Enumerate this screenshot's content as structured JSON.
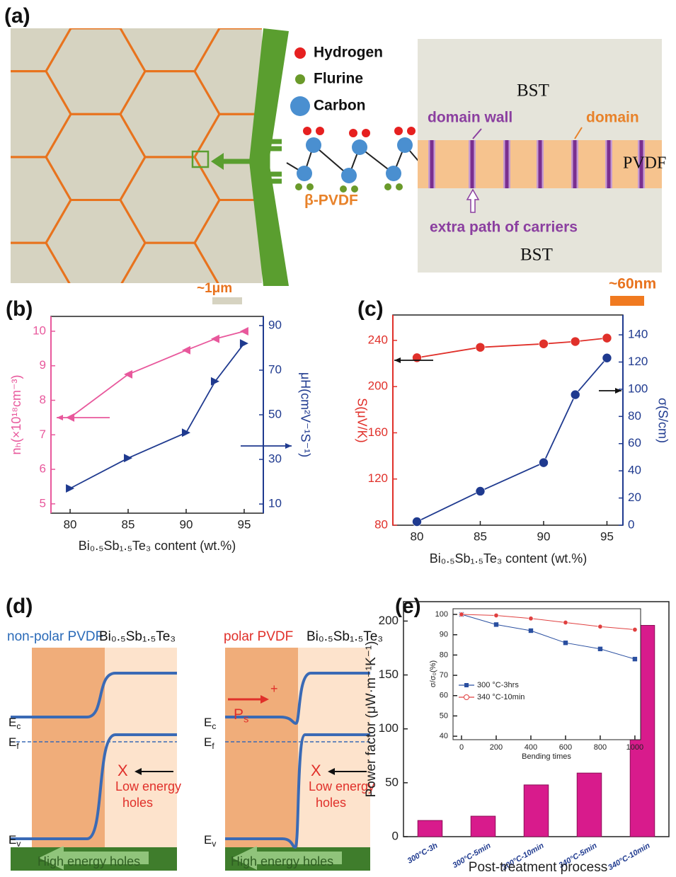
{
  "panel_labels": [
    "(a)",
    "(b)",
    "(c)",
    "(d)",
    "(e)"
  ],
  "panel_a": {
    "legend": [
      "Hydrogen",
      "Flurine",
      "Carbon"
    ],
    "molecule": "β-PVDF",
    "bst_top": "BST",
    "bst_bottom": "BST",
    "domain_wall": "domain wall",
    "domain": "domain",
    "pvdf": "PVDF",
    "extra_path": "extra path of carriers",
    "scale_left": "~1μm",
    "scale_right": "~60nm"
  },
  "panel_d": {
    "left": {
      "title": "non-polar PVDF",
      "material": "Bi₀.₅Sb₁.₅Te₃"
    },
    "right": {
      "title": "polar PVDF",
      "material": "Bi₀.₅Sb₁.₅Te₃",
      "polarization": {
        "symbol": "P",
        "subscript": "s"
      },
      "charge": "+"
    },
    "levels": [
      {
        "symbol": "E",
        "subscript": "c"
      },
      {
        "symbol": "E",
        "subscript": "f"
      },
      {
        "symbol": "E",
        "subscript": "v"
      }
    ],
    "blocked": "X",
    "low_energy_holes": [
      "Low energy",
      "holes"
    ],
    "high_energy_holes": "High energy holes"
  },
  "chart_data": [
    {
      "type": "line",
      "xlabel": "Bi₀.₅Sb₁.₅Te₃  content (wt.%)",
      "ylabel": "nₕ(×10¹⁸cm⁻³)",
      "y2label": "μH(cm²V⁻¹S⁻¹)",
      "x": [
        80,
        85,
        90,
        92.5,
        95
      ],
      "xlim": [
        78.35,
        96.65
      ],
      "xticks": [
        80,
        85,
        90,
        95
      ],
      "ylim": [
        4.73,
        10.43
      ],
      "yticks": [
        5,
        6,
        7,
        8,
        9,
        10
      ],
      "y2lim": [
        5.9,
        94.1
      ],
      "y2ticks": [
        10,
        30,
        50,
        70,
        90
      ],
      "series": [
        {
          "color": "#e8589c",
          "marker": "triangle-left",
          "values": [
            7.5,
            8.75,
            9.45,
            9.78,
            10.0
          ]
        },
        {
          "color": "#1f3a8f",
          "marker": "triangle-right",
          "axis": "y2",
          "values": [
            17,
            30.6,
            42,
            65,
            82
          ]
        }
      ]
    },
    {
      "type": "line",
      "xlabel": "Bi₀.₅Sb₁.₅Te₃  content (wt.%)",
      "ylabel": "S(μV/K)",
      "y2label": "σ(S/cm)",
      "x": [
        80,
        85,
        90,
        92.5,
        95
      ],
      "xlim": [
        78.1,
        96.26
      ],
      "xticks": [
        80,
        85,
        90,
        95
      ],
      "ylim": [
        80,
        262
      ],
      "yticks": [
        80,
        120,
        160,
        200,
        240
      ],
      "y2lim": [
        0,
        154.6
      ],
      "y2ticks": [
        0,
        20,
        40,
        60,
        80,
        100,
        120,
        140
      ],
      "series": [
        {
          "color": "#e0302a",
          "marker": "circle",
          "values": [
            225,
            234,
            237,
            239,
            242
          ]
        },
        {
          "color": "#1f3a8f",
          "marker": "circle",
          "axis": "y2",
          "values": [
            2.6,
            25,
            46,
            96,
            123
          ]
        }
      ]
    },
    {
      "type": "bar",
      "xlabel": "Post-treatment process",
      "ylabel": "Power factor (μW·m⁻¹K⁻¹)",
      "categories": [
        "300°C-3h",
        "300°C-5min",
        "300°C-10min",
        "340°C-5min",
        "340°C-10min"
      ],
      "values": [
        15,
        19,
        48,
        59,
        196
      ],
      "color": "#d81b8c",
      "ylim": [
        0,
        218
      ],
      "yticks": [
        0,
        50,
        100,
        150,
        200
      ]
    },
    {
      "type": "line",
      "xlabel": "Bending times",
      "ylabel": "σ/σ₀(%)",
      "x": [
        0,
        200,
        400,
        600,
        800,
        1000
      ],
      "xlim": [
        -49,
        1033
      ],
      "xticks": [
        0,
        200,
        400,
        600,
        800,
        1000
      ],
      "ylim": [
        38.3,
        102.8
      ],
      "yticks": [
        40,
        50,
        60,
        70,
        80,
        90,
        100
      ],
      "legend": "left",
      "series": [
        {
          "name": "300 °C-3hrs",
          "color": "#2a4fa0",
          "marker": "square",
          "values": [
            100,
            95,
            92,
            86,
            83,
            78
          ]
        },
        {
          "name": "340 °C-10min",
          "color": "#e04040",
          "marker": "circle",
          "values": [
            100,
            99.5,
            98,
            96,
            94,
            92.5
          ]
        }
      ]
    }
  ]
}
